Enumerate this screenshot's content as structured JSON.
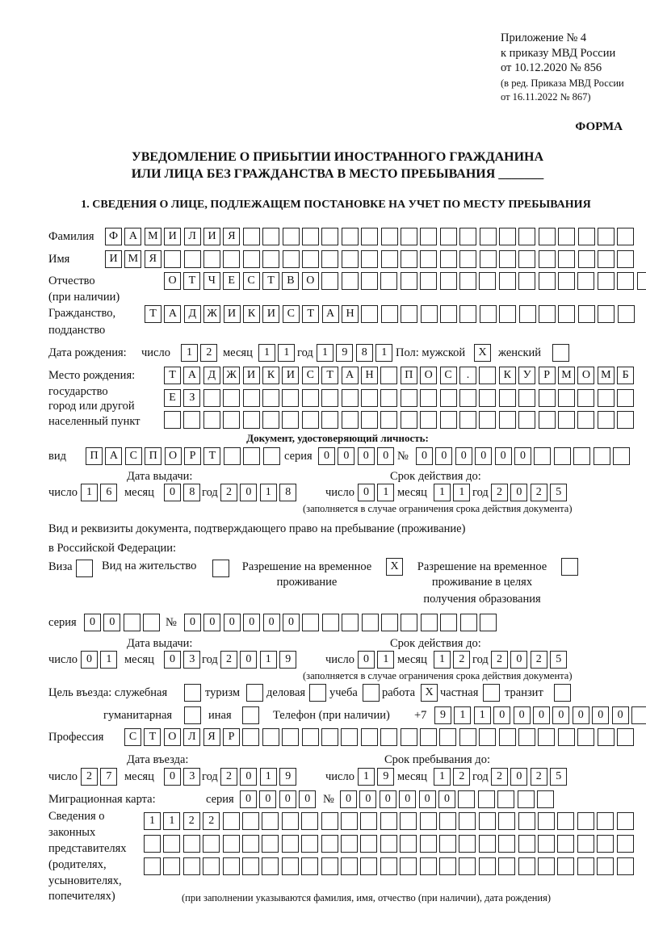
{
  "header": {
    "appendix": "Приложение № 4",
    "order": "к приказу МВД России",
    "order_date": "от 10.12.2020 № 856",
    "edit_1": "(в ред. Приказа МВД России",
    "edit_2": "от 16.11.2022 № 867)",
    "form_label": "ФОРМА",
    "title_1": "УВЕДОМЛЕНИЕ О ПРИБЫТИИ ИНОСТРАННОГО ГРАЖДАНИНА",
    "title_2": "ИЛИ ЛИЦА БЕЗ ГРАЖДАНСТВА В МЕСТО ПРЕБЫВАНИЯ _______",
    "section_1": "1. СВЕДЕНИЯ О ЛИЦЕ, ПОДЛЕЖАЩЕМ ПОСТАНОВКЕ НА УЧЕТ ПО МЕСТУ ПРЕБЫВАНИЯ"
  },
  "labels": {
    "surname": "Фамилия",
    "name": "Имя",
    "patronymic_1": "Отчество",
    "patronymic_2": "(при наличии)",
    "citizenship_1": "Гражданство,",
    "citizenship_2": "подданство",
    "birth_date": "Дата рождения:",
    "day": "число",
    "month": "месяц",
    "year": "год",
    "sex_male": "Пол: мужской",
    "sex_female": "женский",
    "birthplace_1": "Место рождения:",
    "birthplace_2": "государство",
    "birthplace_3": "город или другой",
    "birthplace_4": "населенный пункт",
    "id_doc": "Документ, удостоверяющий личность:",
    "kind": "вид",
    "series": "серия",
    "number": "№",
    "issue_date": "Дата выдачи:",
    "valid_until": "Срок действия до:",
    "validity_note": "(заполняется в случае ограничения срока действия документа)",
    "right_doc_1": "Вид и реквизиты документа, подтверждающего право на пребывание (проживание)",
    "right_doc_2": "в Российской Федерации:",
    "visa": "Виза",
    "residence_permit": "Вид на жительство",
    "temp_residence_1": "Разрешение на временное",
    "temp_residence_2": "проживание",
    "temp_edu_1": "Разрешение на временное",
    "temp_edu_2": "проживание в целях",
    "temp_edu_3": "получения образования",
    "purpose": "Цель въезда: служебная",
    "tourism": "туризм",
    "business": "деловая",
    "study": "учеба",
    "work": "работа",
    "private": "частная",
    "transit": "транзит",
    "humanitarian": "гуманитарная",
    "other": "иная",
    "phone": "Телефон (при наличии)",
    "phone_prefix": "+7",
    "profession": "Профессия",
    "entry_date": "Дата въезда:",
    "stay_until": "Срок пребывания до:",
    "migration_card": "Миграционная карта:",
    "reps_1": "Сведения о",
    "reps_2": "законных",
    "reps_3": "представителях",
    "reps_4": "(родителях,",
    "reps_5": "усыновителях,",
    "reps_6": "попечителях)",
    "reps_note": "(при заполнении указываются фамилия, имя, отчество (при наличии), дата рождения)"
  },
  "fields": {
    "surname": [
      "Ф",
      "А",
      "М",
      "И",
      "Л",
      "И",
      "Я",
      "",
      "",
      "",
      "",
      "",
      "",
      "",
      "",
      "",
      "",
      "",
      "",
      "",
      "",
      "",
      "",
      "",
      "",
      "",
      ""
    ],
    "name": [
      "И",
      "М",
      "Я",
      "",
      "",
      "",
      "",
      "",
      "",
      "",
      "",
      "",
      "",
      "",
      "",
      "",
      "",
      "",
      "",
      "",
      "",
      "",
      "",
      "",
      "",
      "",
      ""
    ],
    "patronymic": [
      "О",
      "Т",
      "Ч",
      "Е",
      "С",
      "Т",
      "В",
      "О",
      "",
      "",
      "",
      "",
      "",
      "",
      "",
      "",
      "",
      "",
      "",
      "",
      "",
      "",
      "",
      "",
      ""
    ],
    "citizenship": [
      "Т",
      "А",
      "Д",
      "Ж",
      "И",
      "К",
      "И",
      "С",
      "Т",
      "А",
      "Н",
      "",
      "",
      "",
      "",
      "",
      "",
      "",
      "",
      "",
      "",
      "",
      "",
      "",
      ""
    ],
    "birth_day": [
      "1",
      "2"
    ],
    "birth_month": [
      "1",
      "1"
    ],
    "birth_year": [
      "1",
      "9",
      "8",
      "1"
    ],
    "sex_male": [
      "X"
    ],
    "sex_female": [
      ""
    ],
    "birthplace_1": [
      "Т",
      "А",
      "Д",
      "Ж",
      "И",
      "К",
      "И",
      "С",
      "Т",
      "А",
      "Н",
      "",
      "П",
      "О",
      "С",
      ".",
      "",
      "К",
      "У",
      "Р",
      "М",
      "О",
      "М",
      "Б"
    ],
    "birthplace_2": [
      "Е",
      "З",
      "",
      "",
      "",
      "",
      "",
      "",
      "",
      "",
      "",
      "",
      "",
      "",
      "",
      "",
      "",
      "",
      "",
      "",
      "",
      "",
      "",
      ""
    ],
    "birthplace_3": [
      "",
      "",
      "",
      "",
      "",
      "",
      "",
      "",
      "",
      "",
      "",
      "",
      "",
      "",
      "",
      "",
      "",
      "",
      "",
      "",
      "",
      "",
      "",
      ""
    ],
    "id_kind": [
      "П",
      "А",
      "С",
      "П",
      "О",
      "Р",
      "Т",
      "",
      "",
      ""
    ],
    "id_series": [
      "0",
      "0",
      "0",
      "0"
    ],
    "id_number": [
      "0",
      "0",
      "0",
      "0",
      "0",
      "0",
      "",
      "",
      "",
      "",
      ""
    ],
    "id_issue_day": [
      "1",
      "6"
    ],
    "id_issue_month": [
      "0",
      "8"
    ],
    "id_issue_year": [
      "2",
      "0",
      "1",
      "8"
    ],
    "id_valid_day": [
      "0",
      "1"
    ],
    "id_valid_month": [
      "1",
      "1"
    ],
    "id_valid_year": [
      "2",
      "0",
      "2",
      "5"
    ],
    "visa": [
      ""
    ],
    "residence_permit": [
      ""
    ],
    "temp_residence": [
      "X"
    ],
    "temp_edu": [
      ""
    ],
    "rd_series": [
      "0",
      "0",
      "",
      ""
    ],
    "rd_number": [
      "0",
      "0",
      "0",
      "0",
      "0",
      "0",
      "",
      "",
      "",
      "",
      "",
      "",
      "",
      "",
      "",
      ""
    ],
    "rd_issue_day": [
      "0",
      "1"
    ],
    "rd_issue_month": [
      "0",
      "3"
    ],
    "rd_issue_year": [
      "2",
      "0",
      "1",
      "9"
    ],
    "rd_valid_day": [
      "0",
      "1"
    ],
    "rd_valid_month": [
      "1",
      "2"
    ],
    "rd_valid_year": [
      "2",
      "0",
      "2",
      "5"
    ],
    "p_service": [
      ""
    ],
    "p_tourism": [
      ""
    ],
    "p_business": [
      ""
    ],
    "p_study": [
      ""
    ],
    "p_work": [
      "X"
    ],
    "p_private": [
      ""
    ],
    "p_transit": [
      ""
    ],
    "p_humanitarian": [
      ""
    ],
    "p_other": [
      ""
    ],
    "phone": [
      "9",
      "1",
      "1",
      "0",
      "0",
      "0",
      "0",
      "0",
      "0",
      "0",
      ""
    ],
    "profession": [
      "С",
      "Т",
      "О",
      "Л",
      "Я",
      "Р",
      "",
      "",
      "",
      "",
      "",
      "",
      "",
      "",
      "",
      "",
      "",
      "",
      "",
      "",
      "",
      "",
      "",
      "",
      "",
      ""
    ],
    "entry_day": [
      "2",
      "7"
    ],
    "entry_month": [
      "0",
      "3"
    ],
    "entry_year": [
      "2",
      "0",
      "1",
      "9"
    ],
    "stay_day": [
      "1",
      "9"
    ],
    "stay_month": [
      "1",
      "2"
    ],
    "stay_year": [
      "2",
      "0",
      "2",
      "5"
    ],
    "mc_series": [
      "0",
      "0",
      "0",
      "0"
    ],
    "mc_number": [
      "0",
      "0",
      "0",
      "0",
      "0",
      "0",
      "",
      "",
      "",
      "",
      ""
    ],
    "reps_1": [
      "1",
      "1",
      "2",
      "2",
      "",
      "",
      "",
      "",
      "",
      "",
      "",
      "",
      "",
      "",
      "",
      "",
      "",
      "",
      "",
      "",
      "",
      "",
      "",
      "",
      ""
    ],
    "reps_2": [
      "",
      "",
      "",
      "",
      "",
      "",
      "",
      "",
      "",
      "",
      "",
      "",
      "",
      "",
      "",
      "",
      "",
      "",
      "",
      "",
      "",
      "",
      "",
      "",
      ""
    ],
    "reps_3": [
      "",
      "",
      "",
      "",
      "",
      "",
      "",
      "",
      "",
      "",
      "",
      "",
      "",
      "",
      "",
      "",
      "",
      "",
      "",
      "",
      "",
      "",
      "",
      "",
      ""
    ]
  }
}
